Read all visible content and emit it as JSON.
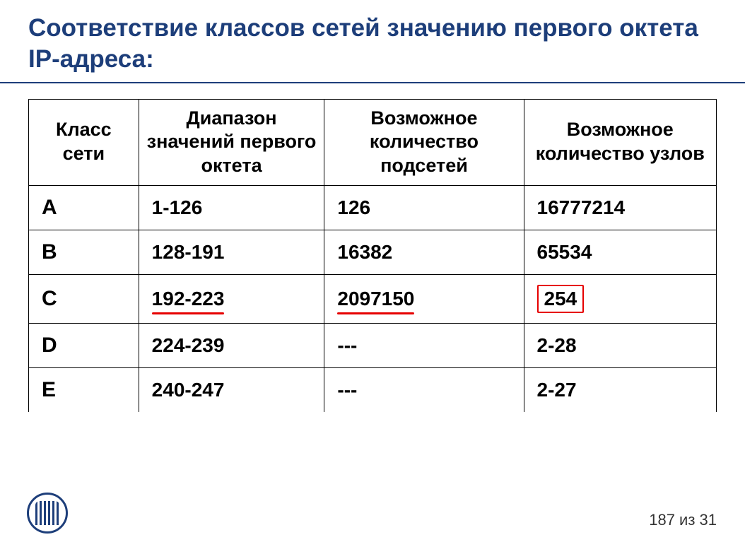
{
  "title": "Соответствие классов сетей значению первого октета IP-адреса:",
  "table": {
    "type": "table",
    "header_fontsize": 27,
    "cell_fontsize": 28,
    "border_color": "#000000",
    "title_color": "#1d3e7a",
    "highlight_color": "#e60000",
    "columns": [
      {
        "label": "Класс сети",
        "width": "16%"
      },
      {
        "label": "Диапазон значений первого октета",
        "width": "27%"
      },
      {
        "label": "Возможное количество подсетей",
        "width": "29%"
      },
      {
        "label": "Возможное количество узлов",
        "width": "28%"
      }
    ],
    "rows": [
      {
        "klass": "A",
        "range": "1-126",
        "subnets": "126",
        "hosts": "16777214",
        "range_underline": false,
        "subnets_underline": false,
        "hosts_box": false
      },
      {
        "klass": "B",
        "range": "128-191",
        "subnets": "16382",
        "hosts": "65534",
        "range_underline": false,
        "subnets_underline": false,
        "hosts_box": false
      },
      {
        "klass": "C",
        "range": "192-223",
        "subnets": "2097150",
        "hosts": "254",
        "range_underline": true,
        "subnets_underline": true,
        "hosts_box": true
      },
      {
        "klass": "D",
        "range": "224-239",
        "subnets": " ---",
        "hosts": "2-28",
        "range_underline": false,
        "subnets_underline": false,
        "hosts_box": false
      },
      {
        "klass": "E",
        "range": "240-247",
        "subnets": " ---",
        "hosts": "2-27",
        "range_underline": false,
        "subnets_underline": false,
        "hosts_box": false
      }
    ]
  },
  "footer": {
    "page_indicator": "187 из 31"
  }
}
